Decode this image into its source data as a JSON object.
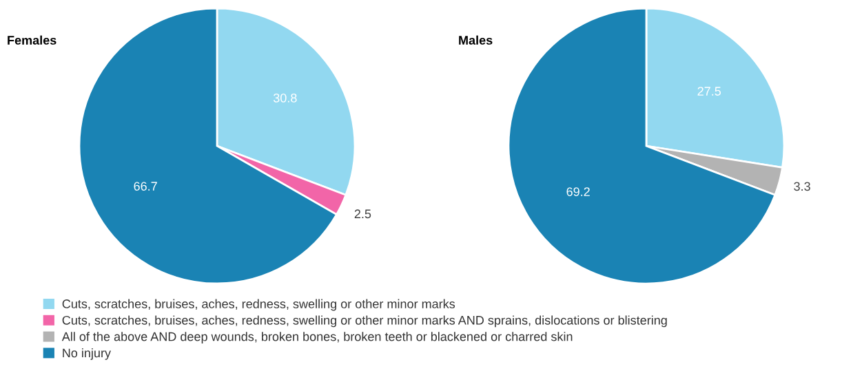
{
  "chart_data": [
    {
      "type": "pie",
      "title": "Females",
      "categories": [
        "Cuts, scratches, bruises, aches, redness, swelling or other minor marks",
        "Cuts, scratches, bruises, aches, redness, swelling or other minor marks AND sprains, dislocations or blistering",
        "All of the above AND deep wounds, broken bones, broken teeth or blackened or charred skin",
        "No injury"
      ],
      "values": [
        30.8,
        2.5,
        null,
        66.7
      ],
      "colors": [
        "#92d8f0",
        "#f265a8",
        "#b3b3b3",
        "#1a83b4"
      ],
      "data_labels": true,
      "legend": "bottom"
    },
    {
      "type": "pie",
      "title": "Males",
      "values": [
        27.5,
        null,
        3.3,
        69.2
      ],
      "colors": [
        "#92d8f0",
        "#f265a8",
        "#b3b3b3",
        "#1a83b4"
      ],
      "data_labels": true
    }
  ]
}
